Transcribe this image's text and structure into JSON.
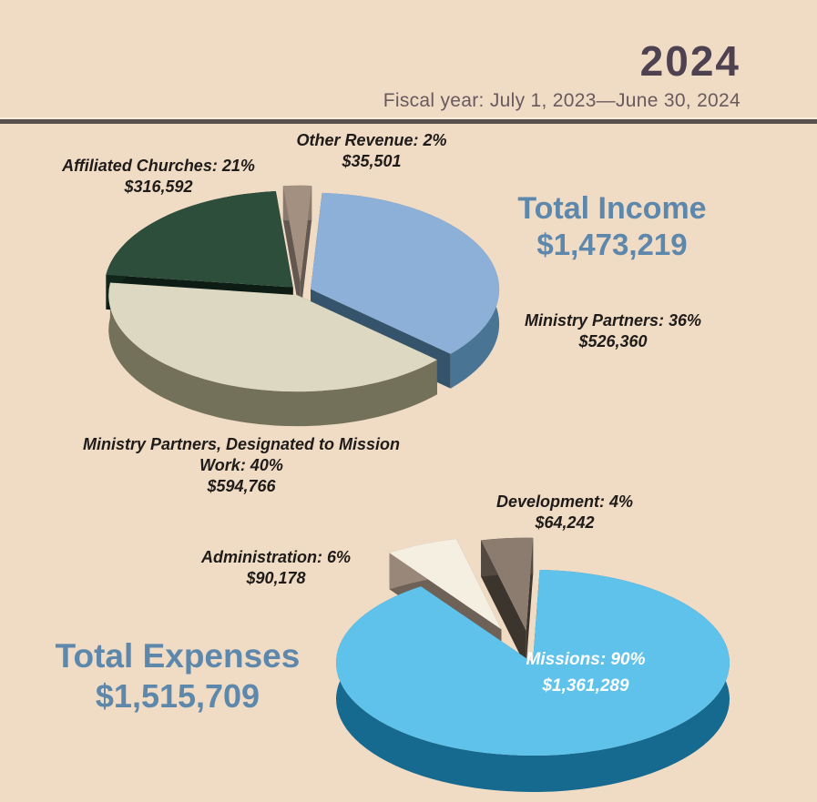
{
  "header": {
    "year": "2024",
    "fiscal_year": "Fiscal year: July 1, 2023—June 30, 2024"
  },
  "colors": {
    "page_background": "#f0dbc5",
    "year_text": "#4e4150",
    "subtitle_text": "#695a5d",
    "divider": "#57504c",
    "totals_accent": "#5d87ab",
    "callout_text": "#1e1b19",
    "on_pie_label": "#ffffff"
  },
  "chart_data": [
    {
      "type": "pie",
      "style": "3d-exploded",
      "total_label": "Total Income",
      "total_value": "$1,473,219",
      "total_amount": 1473219,
      "slices": [
        {
          "label": "Other Revenue",
          "pct": 2,
          "amount": 35501,
          "value": "$35,501",
          "callout": "Other Revenue: 2%",
          "color": "#a39081",
          "side": "#8a7a6e"
        },
        {
          "label": "Ministry Partners",
          "pct": 36,
          "amount": 526360,
          "value": "$526,360",
          "callout": "Ministry Partners: 36%",
          "color": "#8cb0d7",
          "side": "#4a7494"
        },
        {
          "label": "Ministry Partners, Designated to Mission Work",
          "pct": 40,
          "amount": 594766,
          "value": "$594,766",
          "callout": "Ministry Partners, Designated to Mission Work: 40%",
          "color": "#ddd8c2",
          "side": "#73715a"
        },
        {
          "label": "Affiliated Churches",
          "pct": 21,
          "amount": 316592,
          "value": "$316,592",
          "callout": "Affiliated Churches: 21%",
          "color": "#2e4e3c",
          "side": "#12271c"
        }
      ]
    },
    {
      "type": "pie",
      "style": "3d-exploded",
      "total_label": "Total Expenses",
      "total_value": "$1,515,709",
      "total_amount": 1515709,
      "slices": [
        {
          "label": "Missions",
          "pct": 90,
          "amount": 1361289,
          "value": "$1,361,289",
          "callout": "Missions: 90%",
          "color": "#5ec2ea",
          "side": "#16698f"
        },
        {
          "label": "Administration",
          "pct": 6,
          "amount": 90178,
          "value": "$90,178",
          "callout": "Administration: 6%",
          "color": "#f5efe2",
          "side": "#99887a"
        },
        {
          "label": "Development",
          "pct": 4,
          "amount": 64242,
          "value": "$64,242",
          "callout": "Development: 4%",
          "color": "#8c7c6f",
          "side": "#544940"
        }
      ]
    }
  ]
}
